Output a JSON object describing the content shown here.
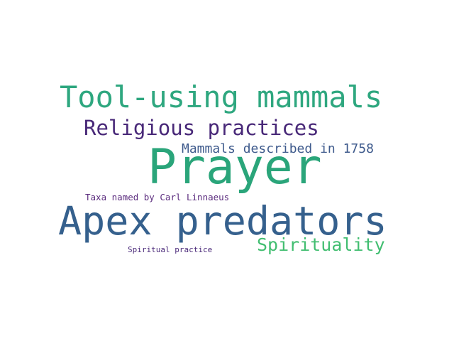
{
  "words": [
    {
      "id": "w-prayer",
      "text": "Prayer",
      "color": "#2aa57a"
    },
    {
      "id": "w-tool",
      "text": "Tool-using mammals",
      "color": "#2ea77f"
    },
    {
      "id": "w-apex",
      "text": "Apex predators",
      "color": "#35608d"
    },
    {
      "id": "w-religious",
      "text": "Religious practices",
      "color": "#482878"
    },
    {
      "id": "w-spirit",
      "text": "Spirituality",
      "color": "#42be71"
    },
    {
      "id": "w-mammals",
      "text": "Mammals described in 1758",
      "color": "#3e5a8c"
    },
    {
      "id": "w-taxa",
      "text": "Taxa named by Carl Linnaeus",
      "color": "#5b2c7e"
    },
    {
      "id": "w-practice",
      "text": "Spiritual practice",
      "color": "#4b2a7a"
    }
  ]
}
